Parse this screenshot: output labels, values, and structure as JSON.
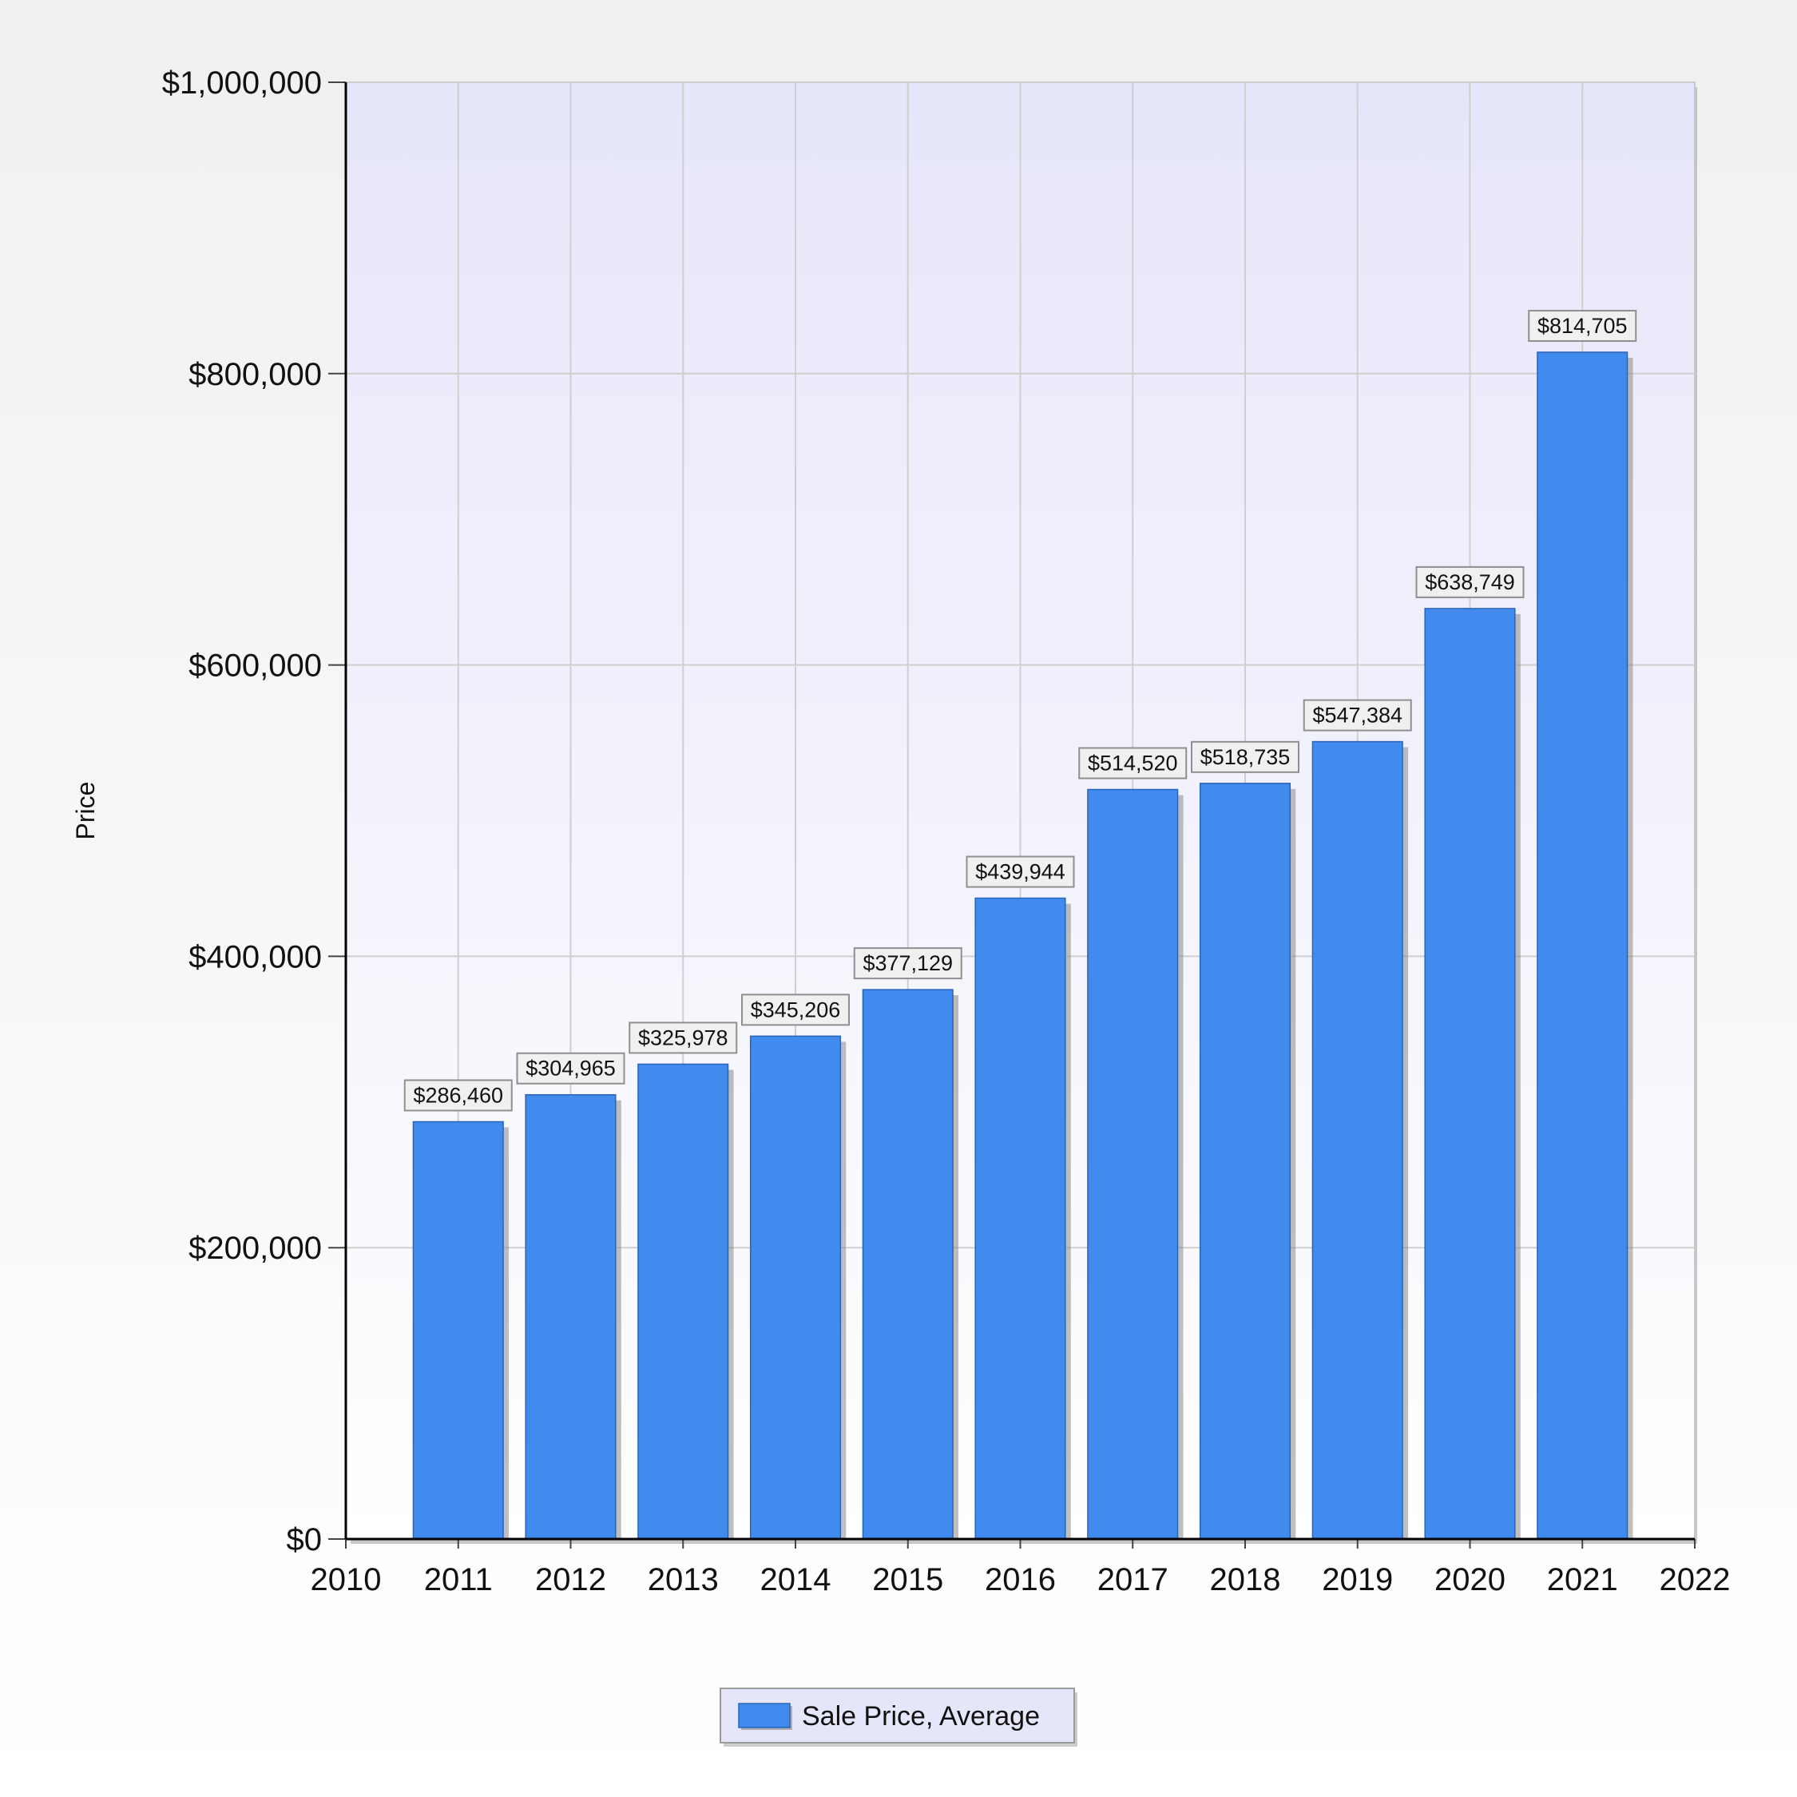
{
  "chart_data": {
    "type": "bar",
    "ylabel": "Price",
    "xlabel": "",
    "title": "",
    "x_ticks": [
      "2010",
      "2011",
      "2012",
      "2013",
      "2014",
      "2015",
      "2016",
      "2017",
      "2018",
      "2019",
      "2020",
      "2021",
      "2022"
    ],
    "xlim": [
      2010,
      2022
    ],
    "ylim": [
      0,
      1000000
    ],
    "y_ticks": [
      {
        "value": 0,
        "label": "$0"
      },
      {
        "value": 200000,
        "label": "$200,000"
      },
      {
        "value": 400000,
        "label": "$400,000"
      },
      {
        "value": 600000,
        "label": "$600,000"
      },
      {
        "value": 800000,
        "label": "$800,000"
      },
      {
        "value": 1000000,
        "label": "$1,000,000"
      }
    ],
    "categories": [
      "2011",
      "2012",
      "2013",
      "2014",
      "2015",
      "2016",
      "2017",
      "2018",
      "2019",
      "2020",
      "2021"
    ],
    "series": [
      {
        "name": "Sale Price, Average",
        "color": "#418bee",
        "values": [
          286460,
          304965,
          325978,
          345206,
          377129,
          439944,
          514520,
          518735,
          547384,
          638749,
          814705
        ],
        "labels": [
          "$286,460",
          "$304,965",
          "$325,978",
          "$345,206",
          "$377,129",
          "$439,944",
          "$514,520",
          "$518,735",
          "$547,384",
          "$638,749",
          "$814,705"
        ]
      }
    ],
    "grid": true,
    "legend_position": "bottom"
  }
}
